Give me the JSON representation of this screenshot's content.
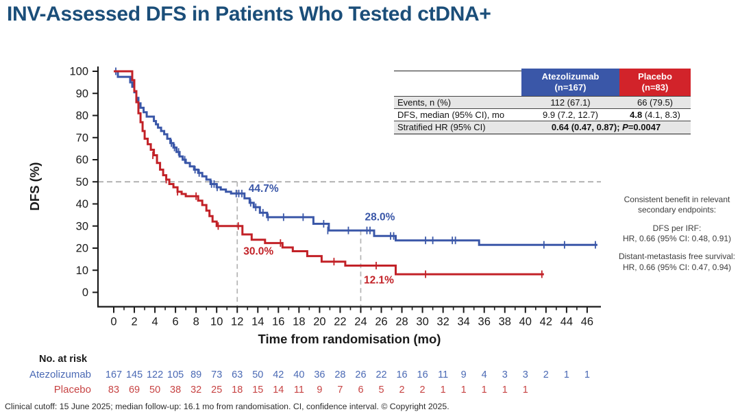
{
  "title": "INV-Assessed DFS in Patients Who Tested ctDNA+",
  "colors": {
    "title": "#1b4e79",
    "axis": "#1a1a1a",
    "dash": "#a8a8a8",
    "table_header_blue": "#3a57a8",
    "table_header_red": "#d2232a",
    "table_row_alt": "#e6e6e6"
  },
  "chart_data": {
    "type": "line",
    "subtype": "kaplan-meier-step",
    "title": "",
    "xlabel": "Time from randomisation (mo)",
    "ylabel": "DFS (%)",
    "xlim": [
      0,
      47.3
    ],
    "ylim": [
      0,
      100
    ],
    "xticks": [
      0,
      2,
      4,
      6,
      8,
      10,
      12,
      14,
      16,
      18,
      20,
      22,
      24,
      26,
      28,
      30,
      32,
      34,
      36,
      38,
      40,
      42,
      44,
      46
    ],
    "yticks": [
      0,
      10,
      20,
      30,
      40,
      50,
      60,
      70,
      80,
      90,
      100
    ],
    "grid": "off",
    "reference_lines": {
      "horizontal_pct": 50,
      "vertical": [
        {
          "x": 12,
          "from_pct": 50
        },
        {
          "x": 24,
          "from_pct": 28
        }
      ]
    },
    "series": [
      {
        "name": "Atezolizumab",
        "color": "#3a57a8",
        "steps": [
          [
            0,
            100
          ],
          [
            0.4,
            97.5
          ],
          [
            1.6,
            95
          ],
          [
            1.8,
            93
          ],
          [
            2.0,
            90.5
          ],
          [
            2.2,
            88
          ],
          [
            2.4,
            85.5
          ],
          [
            2.6,
            83.5
          ],
          [
            2.9,
            81.5
          ],
          [
            3.2,
            79.5
          ],
          [
            3.9,
            77.5
          ],
          [
            4.1,
            76
          ],
          [
            4.3,
            74.5
          ],
          [
            4.6,
            73
          ],
          [
            4.9,
            71.5
          ],
          [
            5.2,
            69.5
          ],
          [
            5.5,
            67.5
          ],
          [
            5.8,
            65.5
          ],
          [
            6.1,
            63.5
          ],
          [
            6.4,
            61.5
          ],
          [
            6.7,
            60
          ],
          [
            7.0,
            58.5
          ],
          [
            7.4,
            57
          ],
          [
            7.8,
            55.5
          ],
          [
            8.2,
            54
          ],
          [
            8.6,
            52.5
          ],
          [
            9.0,
            51
          ],
          [
            9.4,
            49
          ],
          [
            10.0,
            47.5
          ],
          [
            10.4,
            46.5
          ],
          [
            10.9,
            45.5
          ],
          [
            11.4,
            44.7
          ],
          [
            12.7,
            42.5
          ],
          [
            13.2,
            40.5
          ],
          [
            13.6,
            38.5
          ],
          [
            14.2,
            36
          ],
          [
            14.9,
            34
          ],
          [
            19.4,
            31
          ],
          [
            20.9,
            28
          ],
          [
            25.3,
            25.5
          ],
          [
            27.4,
            23.5
          ],
          [
            35.5,
            21.5
          ],
          [
            47.0,
            21.5
          ]
        ],
        "censors": [
          [
            0.2,
            100
          ],
          [
            5.6,
            67.5
          ],
          [
            5.9,
            65.5
          ],
          [
            6.3,
            63.5
          ],
          [
            6.9,
            60
          ],
          [
            7.9,
            55.5
          ],
          [
            8.3,
            54
          ],
          [
            9.5,
            49
          ],
          [
            9.75,
            49
          ],
          [
            10.05,
            47.5
          ],
          [
            11.9,
            44.7
          ],
          [
            12.15,
            44.7
          ],
          [
            12.45,
            44.7
          ],
          [
            13.3,
            40.5
          ],
          [
            13.8,
            38.5
          ],
          [
            14.5,
            36
          ],
          [
            15.0,
            34
          ],
          [
            16.5,
            34
          ],
          [
            18.4,
            34
          ],
          [
            20.4,
            31
          ],
          [
            20.8,
            28
          ],
          [
            22.8,
            28
          ],
          [
            24.6,
            28
          ],
          [
            24.9,
            28
          ],
          [
            26.9,
            25.5
          ],
          [
            27.2,
            25.5
          ],
          [
            30.3,
            23.5
          ],
          [
            31.0,
            23.5
          ],
          [
            32.9,
            23.5
          ],
          [
            33.2,
            23.5
          ],
          [
            41.8,
            21.5
          ],
          [
            43.8,
            21.5
          ],
          [
            46.8,
            21.5
          ]
        ]
      },
      {
        "name": "Placebo",
        "color": "#c22127",
        "steps": [
          [
            0,
            100
          ],
          [
            1.8,
            96
          ],
          [
            2.0,
            91
          ],
          [
            2.2,
            86
          ],
          [
            2.4,
            81
          ],
          [
            2.6,
            77
          ],
          [
            2.8,
            73
          ],
          [
            3.0,
            69.5
          ],
          [
            3.3,
            67
          ],
          [
            3.6,
            64.5
          ],
          [
            3.9,
            62
          ],
          [
            4.2,
            58.5
          ],
          [
            4.5,
            55.5
          ],
          [
            4.8,
            53
          ],
          [
            5.1,
            51
          ],
          [
            5.4,
            49
          ],
          [
            5.8,
            47.5
          ],
          [
            6.2,
            45.5
          ],
          [
            6.6,
            44.5
          ],
          [
            7.0,
            43.5
          ],
          [
            8.2,
            41.5
          ],
          [
            8.6,
            39.5
          ],
          [
            9.0,
            37
          ],
          [
            9.3,
            34.5
          ],
          [
            9.6,
            32
          ],
          [
            10.0,
            30
          ],
          [
            12.5,
            26.2
          ],
          [
            13.4,
            23.8
          ],
          [
            14.7,
            22.3
          ],
          [
            16.4,
            20.3
          ],
          [
            17.4,
            18.6
          ],
          [
            18.8,
            16.4
          ],
          [
            20.2,
            13.9
          ],
          [
            22.5,
            12.1
          ],
          [
            27.4,
            8.2
          ],
          [
            41.8,
            8.2
          ]
        ],
        "censors": [
          [
            3.8,
            62
          ],
          [
            5.1,
            51
          ],
          [
            6.2,
            45.5
          ],
          [
            8.0,
            43.5
          ],
          [
            10.15,
            30
          ],
          [
            12.1,
            30
          ],
          [
            16.2,
            22.3
          ],
          [
            21.4,
            13.9
          ],
          [
            25.5,
            12.1
          ],
          [
            30.3,
            8.2
          ],
          [
            41.6,
            8.2
          ]
        ]
      }
    ],
    "annotations": [
      {
        "text": "44.7%",
        "t": 13.1,
        "pct": 45.5,
        "color": "#3a57a8"
      },
      {
        "text": "28.0%",
        "t": 24.4,
        "pct": 32.5,
        "color": "#3a57a8"
      },
      {
        "text": "30.0%",
        "t": 12.6,
        "pct": 17.0,
        "color": "#c22127"
      },
      {
        "text": "12.1%",
        "t": 24.3,
        "pct": 4.0,
        "color": "#c22127"
      }
    ],
    "at_risk": {
      "title": "No. at risk",
      "times": [
        0,
        2,
        4,
        6,
        8,
        10,
        12,
        14,
        16,
        18,
        20,
        22,
        24,
        26,
        28,
        30,
        32,
        34,
        36,
        38,
        40,
        42,
        44,
        46
      ],
      "rows": [
        {
          "name": "Atezolizumab",
          "color": "#4a69b4",
          "values": [
            167,
            145,
            122,
            105,
            89,
            73,
            63,
            50,
            42,
            40,
            36,
            28,
            26,
            22,
            16,
            16,
            11,
            9,
            4,
            3,
            3,
            2,
            1,
            1
          ]
        },
        {
          "name": "Placebo",
          "color": "#c74343",
          "values": [
            83,
            69,
            50,
            38,
            32,
            25,
            18,
            15,
            14,
            11,
            9,
            7,
            6,
            5,
            2,
            2,
            1,
            1,
            1,
            1,
            1
          ]
        }
      ]
    }
  },
  "summary_table": {
    "col_headers": [
      {
        "name": "Atezolizumab",
        "n": "(n=167)"
      },
      {
        "name": "Placebo",
        "n": "(n=83)"
      }
    ],
    "events_row": {
      "label": "Events, n (%)",
      "atezolizumab": "112 (67.1)",
      "placebo": "66 (79.5)"
    },
    "dfs_row": {
      "label": "DFS, median (95% CI), mo",
      "atezolizumab": "9.9 (7.2, 12.7)",
      "placebo_bold": "4.8",
      "placebo_rest": " (4.1, 8.3)"
    },
    "hr_row": {
      "label": "Stratified HR (95% CI)",
      "value_pre": "0.64 (0.47, 0.87); ",
      "value_p": "P",
      "value_post": "=0.0047"
    }
  },
  "side_note": {
    "heading": "Consistent benefit in relevant secondary endpoints:",
    "item1_title": "DFS per IRF:",
    "item1_value": "HR, 0.66 (95% CI: 0.48, 0.91)",
    "item2_title": "Distant-metastasis free survival:",
    "item2_value": "HR, 0.66 (95% CI: 0.47, 0.94)"
  },
  "footnote": "Clinical cutoff: 15 June 2025; median follow-up: 16.1 mo from randomisation. CI, confidence interval. © Copyright 2025."
}
